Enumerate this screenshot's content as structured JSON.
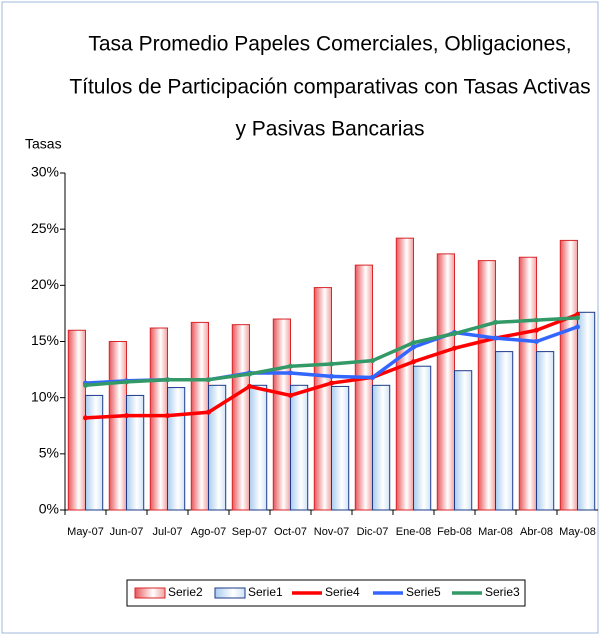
{
  "chart_data": {
    "type": "bar",
    "title": [
      "Tasa  Promedio  Papeles  Comerciales, Obligaciones,",
      "Títulos de Participación comparativas  con  Tasas  Activas",
      "y Pasivas Bancarias"
    ],
    "y_axis_label": "Tasas",
    "categories": [
      "May-07",
      "Jun-07",
      "Jul-07",
      "Ago-07",
      "Sep-07",
      "Oct-07",
      "Nov-07",
      "Dic-07",
      "Ene-08",
      "Feb-08",
      "Mar-08",
      "Abr-08",
      "May-08"
    ],
    "ylim": [
      0,
      30
    ],
    "yticks": [
      {
        "value": 0,
        "label": "0%"
      },
      {
        "value": 5,
        "label": "5%"
      },
      {
        "value": 10,
        "label": "10%"
      },
      {
        "value": 15,
        "label": "15%"
      },
      {
        "value": 20,
        "label": "20%"
      },
      {
        "value": 25,
        "label": "25%"
      },
      {
        "value": 30,
        "label": "30%"
      }
    ],
    "series": [
      {
        "name": "Serie2",
        "type": "bar",
        "color": "#d9262b",
        "values": [
          16,
          15,
          16.2,
          16.7,
          16.5,
          17,
          19.8,
          21.8,
          24.2,
          22.8,
          22.2,
          22.5,
          24
        ]
      },
      {
        "name": "Serie1",
        "type": "bar",
        "color": "#1f3a8a",
        "values": [
          10.2,
          10.2,
          10.9,
          11.1,
          11.1,
          11.1,
          11,
          11.1,
          12.8,
          12.4,
          14.1,
          14.1,
          17.6
        ]
      },
      {
        "name": "Serie4",
        "type": "line",
        "color": "#ff0000",
        "values": [
          8.2,
          8.4,
          8.4,
          8.7,
          11,
          10.2,
          11.3,
          11.8,
          13.2,
          14.4,
          15.3,
          16,
          17.4
        ]
      },
      {
        "name": "Serie5",
        "type": "line",
        "color": "#3366ff",
        "values": [
          11.3,
          11.5,
          11.6,
          11.6,
          12.2,
          12.2,
          11.9,
          11.8,
          14.5,
          15.8,
          15.3,
          15,
          16.3
        ]
      },
      {
        "name": "Serie3",
        "type": "line",
        "color": "#339966",
        "values": [
          11.1,
          11.4,
          11.6,
          11.6,
          12.1,
          12.8,
          13,
          13.3,
          14.9,
          15.7,
          16.7,
          16.9,
          17.1
        ]
      }
    ]
  }
}
